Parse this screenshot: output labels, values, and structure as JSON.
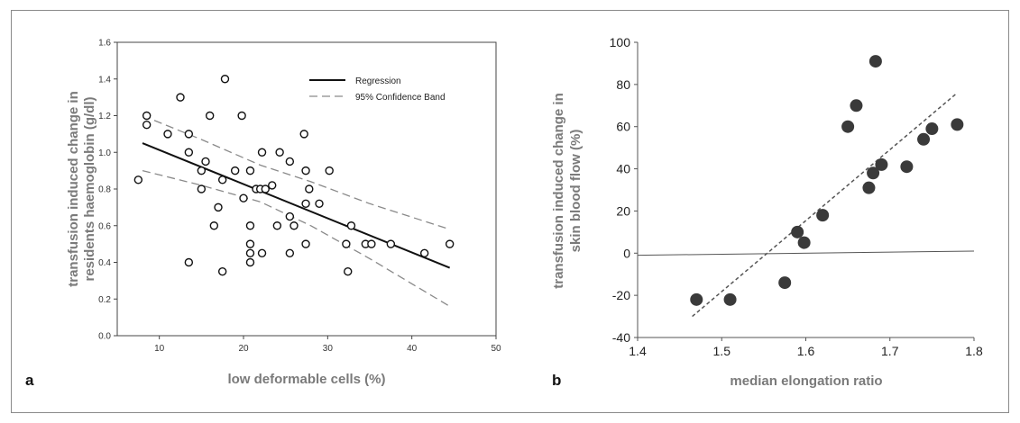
{
  "chart_data": [
    {
      "type": "scatter",
      "panel_label": "a",
      "xlabel": "low deformable cells (%)",
      "ylabel_lines": [
        "transfusion induced change in",
        "residents haemoglobin (g/dl)"
      ],
      "xlim": [
        5,
        50
      ],
      "ylim": [
        0.0,
        1.6
      ],
      "xticks": [
        "10",
        "20",
        "30",
        "40",
        "50"
      ],
      "yticks": [
        "0.0",
        "0.2",
        "0.4",
        "0.6",
        "0.8",
        "1.0",
        "1.2",
        "1.4",
        "1.6"
      ],
      "legend": {
        "placement": "top-right",
        "regression": "Regression",
        "band": "95% Confidence Band"
      },
      "points": [
        [
          7.5,
          0.85
        ],
        [
          8.5,
          1.2
        ],
        [
          8.5,
          1.15
        ],
        [
          11,
          1.1
        ],
        [
          12.5,
          1.3
        ],
        [
          13.5,
          1.1
        ],
        [
          13.5,
          1.0
        ],
        [
          13.5,
          0.4
        ],
        [
          15,
          0.9
        ],
        [
          15,
          0.8
        ],
        [
          15.5,
          0.95
        ],
        [
          16,
          1.2
        ],
        [
          16.5,
          0.6
        ],
        [
          17,
          0.7
        ],
        [
          17.5,
          0.85
        ],
        [
          17.5,
          0.35
        ],
        [
          17.8,
          1.4
        ],
        [
          19,
          0.9
        ],
        [
          19.8,
          1.2
        ],
        [
          20,
          0.75
        ],
        [
          20.8,
          0.9
        ],
        [
          20.8,
          0.6
        ],
        [
          20.8,
          0.5
        ],
        [
          20.8,
          0.45
        ],
        [
          20.8,
          0.4
        ],
        [
          21.5,
          0.8
        ],
        [
          22,
          0.8
        ],
        [
          22.2,
          1.0
        ],
        [
          22.2,
          0.45
        ],
        [
          22.6,
          0.8
        ],
        [
          23.4,
          0.82
        ],
        [
          24,
          0.6
        ],
        [
          24.3,
          1.0
        ],
        [
          25.5,
          0.95
        ],
        [
          25.5,
          0.65
        ],
        [
          25.5,
          0.45
        ],
        [
          26,
          0.6
        ],
        [
          27.2,
          1.1
        ],
        [
          27.4,
          0.9
        ],
        [
          27.4,
          0.72
        ],
        [
          27.4,
          0.5
        ],
        [
          27.8,
          0.8
        ],
        [
          29,
          0.72
        ],
        [
          30.2,
          0.9
        ],
        [
          32.2,
          0.5
        ],
        [
          32.4,
          0.35
        ],
        [
          32.8,
          0.6
        ],
        [
          34.5,
          0.5
        ],
        [
          35.2,
          0.5
        ],
        [
          37.5,
          0.5
        ],
        [
          41.5,
          0.45
        ],
        [
          44.5,
          0.5
        ]
      ],
      "regression": [
        [
          8,
          1.05
        ],
        [
          44.5,
          0.37
        ]
      ],
      "band_upper": [
        [
          8,
          1.2
        ],
        [
          15,
          1.07
        ],
        [
          22,
          0.93
        ],
        [
          28,
          0.84
        ],
        [
          35,
          0.72
        ],
        [
          44.5,
          0.58
        ]
      ],
      "band_lower": [
        [
          8,
          0.9
        ],
        [
          15,
          0.82
        ],
        [
          22,
          0.73
        ],
        [
          28,
          0.6
        ],
        [
          35,
          0.42
        ],
        [
          44.5,
          0.16
        ]
      ]
    },
    {
      "type": "scatter",
      "panel_label": "b",
      "xlabel": "median elongation ratio",
      "ylabel_lines": [
        "transfusion induced change in",
        "skin blood flow (%)"
      ],
      "xlim": [
        1.4,
        1.8
      ],
      "ylim": [
        -40,
        100
      ],
      "xticks": [
        "1.4",
        "1.5",
        "1.6",
        "1.7",
        "1.8"
      ],
      "yticks": [
        "-40",
        "-20",
        "0",
        "20",
        "40",
        "60",
        "80",
        "100"
      ],
      "points": [
        [
          1.47,
          -22
        ],
        [
          1.51,
          -22
        ],
        [
          1.575,
          -14
        ],
        [
          1.59,
          10
        ],
        [
          1.598,
          5
        ],
        [
          1.62,
          18
        ],
        [
          1.65,
          60
        ],
        [
          1.66,
          70
        ],
        [
          1.675,
          31
        ],
        [
          1.68,
          38
        ],
        [
          1.683,
          91
        ],
        [
          1.69,
          42
        ],
        [
          1.72,
          41
        ],
        [
          1.74,
          54
        ],
        [
          1.75,
          59
        ],
        [
          1.78,
          61
        ]
      ],
      "fit_line": [
        [
          1.465,
          -30
        ],
        [
          1.78,
          76
        ]
      ],
      "baseline": [
        [
          1.4,
          -1
        ],
        [
          1.8,
          1
        ]
      ]
    }
  ]
}
